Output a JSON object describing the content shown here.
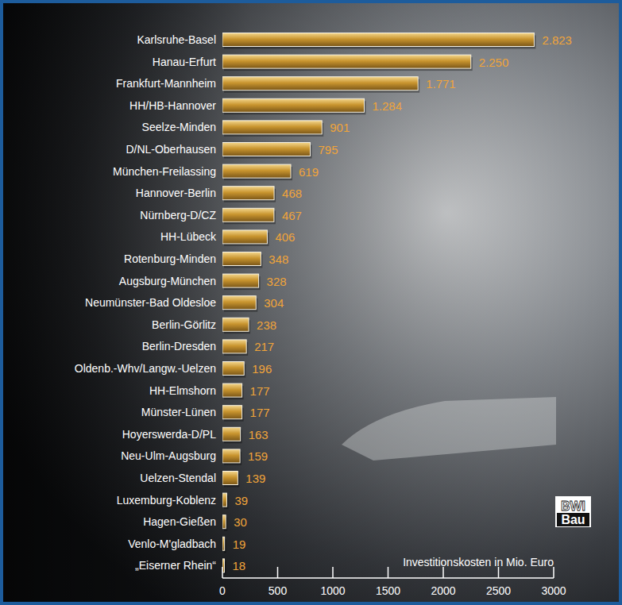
{
  "chart_data": {
    "type": "bar",
    "orientation": "horizontal",
    "x_label": "Investitionskosten in Mio. Euro",
    "annotations": [
      "BWI",
      "Bau"
    ],
    "categories": [
      "Karlsruhe-Basel",
      "Hanau-Erfurt",
      "Frankfurt-Mannheim",
      "HH/HB-Hannover",
      "Seelze-Minden",
      "D/NL-Oberhausen",
      "München-Freilassing",
      "Hannover-Berlin",
      "Nürnberg-D/CZ",
      "HH-Lübeck",
      "Rotenburg-Minden",
      "Augsburg-München",
      "Neumünster-Bad Oldesloe",
      "Berlin-Görlitz",
      "Berlin-Dresden",
      "Oldenb.-Whv/Langw.-Uelzen",
      "HH-Elmshorn",
      "Münster-Lünen",
      "Hoyerswerda-D/PL",
      "Neu-Ulm-Augsburg",
      "Uelzen-Stendal",
      "Luxemburg-Koblenz",
      "Hagen-Gießen",
      "Venlo-M'gladbach",
      "„Eiserner Rhein“"
    ],
    "values": [
      2823,
      2250,
      1771,
      1284,
      901,
      795,
      619,
      468,
      467,
      406,
      348,
      328,
      304,
      238,
      217,
      196,
      177,
      177,
      163,
      159,
      139,
      39,
      30,
      19,
      18
    ],
    "value_labels": [
      "2.823",
      "2.250",
      "1.771",
      "1.284",
      "901",
      "795",
      "619",
      "468",
      "467",
      "406",
      "348",
      "328",
      "304",
      "238",
      "217",
      "196",
      "177",
      "177",
      "163",
      "159",
      "139",
      "39",
      "30",
      "19",
      "18"
    ],
    "data_labels": true,
    "color": "#c9952f",
    "xlim": [
      0,
      3000
    ],
    "xticks": [
      0,
      500,
      1000,
      1500,
      2000,
      2500,
      3000
    ],
    "grid": false
  }
}
